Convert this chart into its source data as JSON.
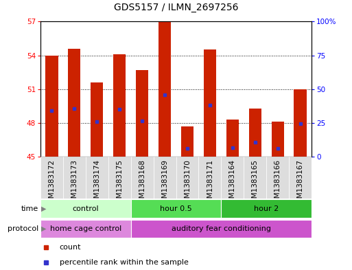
{
  "title": "GDS5157 / ILMN_2697256",
  "samples": [
    "GSM1383172",
    "GSM1383173",
    "GSM1383174",
    "GSM1383175",
    "GSM1383168",
    "GSM1383169",
    "GSM1383170",
    "GSM1383171",
    "GSM1383164",
    "GSM1383165",
    "GSM1383166",
    "GSM1383167"
  ],
  "bar_values": [
    54.0,
    54.6,
    51.6,
    54.1,
    52.7,
    57.0,
    47.7,
    54.5,
    48.3,
    49.3,
    48.1,
    51.0
  ],
  "blue_dot_positions": [
    49.1,
    49.3,
    48.1,
    49.2,
    48.2,
    50.5,
    45.7,
    49.6,
    45.8,
    46.3,
    45.7,
    47.9
  ],
  "bar_bottom": 45.0,
  "ylim": [
    45,
    57
  ],
  "yticks_left": [
    45,
    48,
    51,
    54,
    57
  ],
  "yticks_right_vals": [
    0,
    25,
    50,
    75,
    100
  ],
  "yticks_right_labels": [
    "0",
    "25",
    "50",
    "75",
    "100%"
  ],
  "grid_ticks": [
    48,
    51,
    54
  ],
  "bar_color": "#cc2200",
  "blue_color": "#3333cc",
  "time_groups": [
    {
      "label": "control",
      "start": 0,
      "end": 4,
      "color": "#ccffcc"
    },
    {
      "label": "hour 0.5",
      "start": 4,
      "end": 8,
      "color": "#55dd55"
    },
    {
      "label": "hour 2",
      "start": 8,
      "end": 12,
      "color": "#33bb33"
    }
  ],
  "protocol_groups": [
    {
      "label": "home cage control",
      "start": 0,
      "end": 4,
      "color": "#dd88dd"
    },
    {
      "label": "auditory fear conditioning",
      "start": 4,
      "end": 12,
      "color": "#cc55cc"
    }
  ],
  "sample_bg_color": "#dddddd",
  "legend_count_color": "#cc2200",
  "legend_pct_color": "#3333cc",
  "bg_color": "#ffffff",
  "title_fontsize": 10,
  "tick_fontsize": 7.5,
  "label_fontsize": 8,
  "group_fontsize": 8
}
